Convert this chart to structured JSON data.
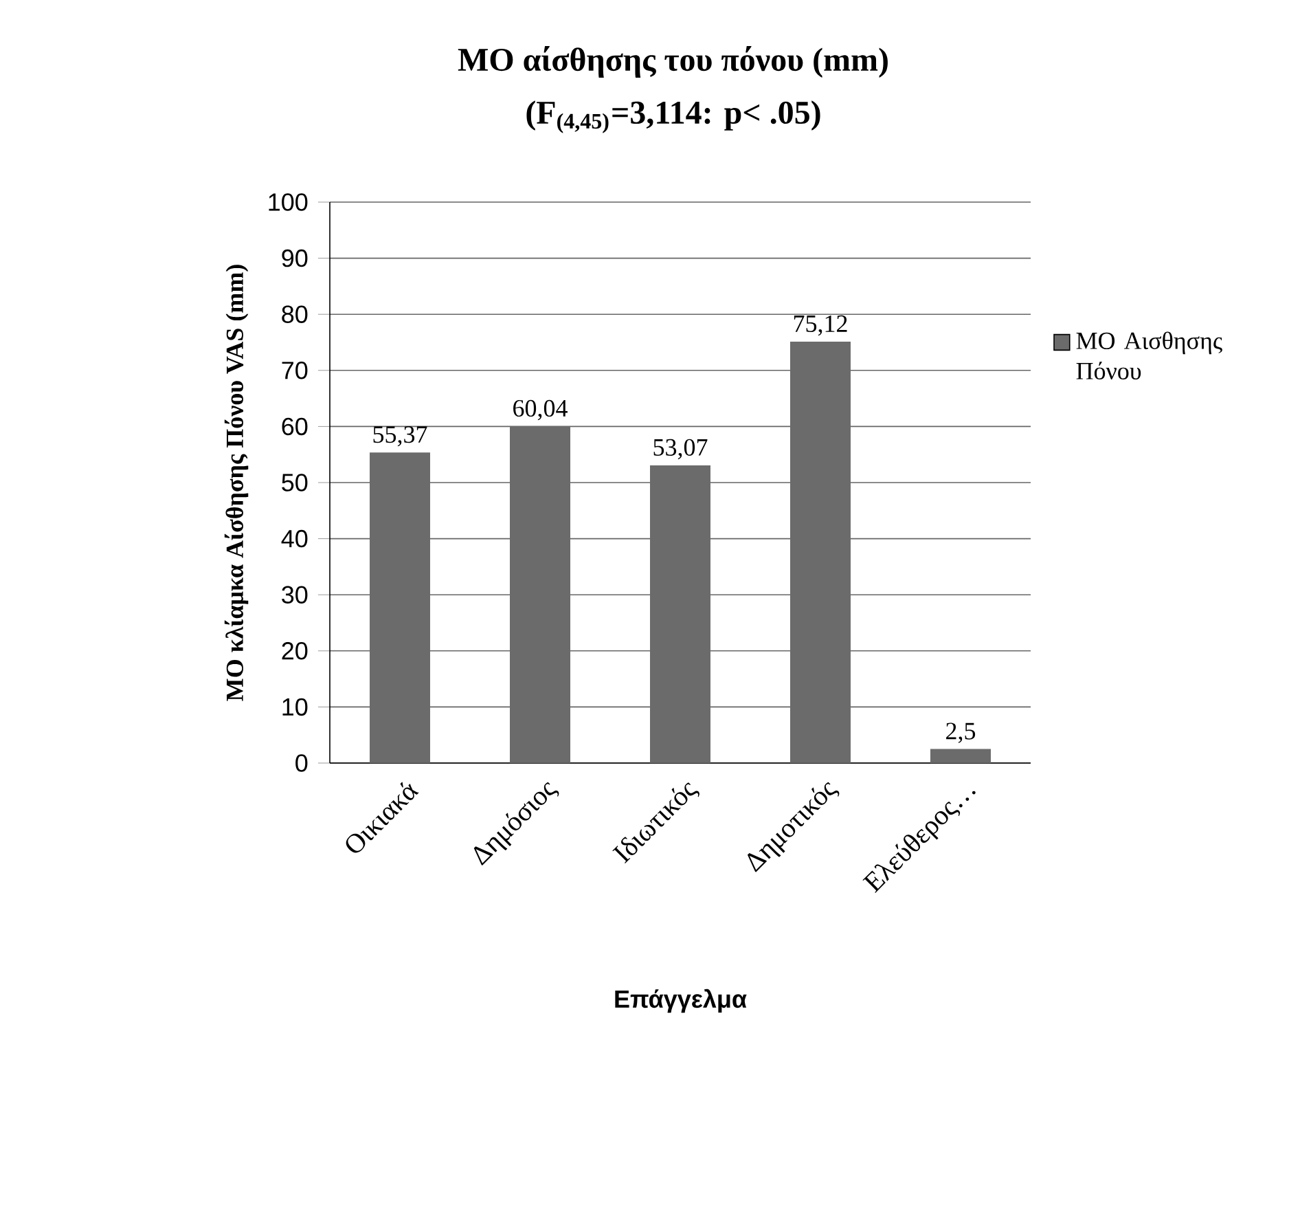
{
  "chart_data": {
    "type": "bar",
    "title": "ΜΟ αίσθησης του πόνου (mm)",
    "subtitle": "(F$_{(4,45)}$=3,114: p< .05)",
    "xlabel": "Επάγγελμα",
    "ylabel": "ΜΟ κλίαμκα Αίσθησης Πόνου VAS (mm)",
    "categories": [
      "Οικιακά",
      "Δημόσιος",
      "Ιδιωτικός",
      "Δημοτικός",
      "Ελεύθερος…"
    ],
    "series": [
      {
        "name": "ΜΟ Αισθησης Πόνου",
        "color": "#6b6b6b",
        "values": [
          55.37,
          60.04,
          53.07,
          75.12,
          2.5
        ],
        "value_labels": [
          "55,37",
          "60,04",
          "53,07",
          "75,12",
          "2,5"
        ]
      }
    ],
    "ylim": [
      0,
      100
    ],
    "yticks": [
      0,
      10,
      20,
      30,
      40,
      50,
      60,
      70,
      80,
      90,
      100
    ],
    "grid": "y",
    "legend": "right"
  }
}
